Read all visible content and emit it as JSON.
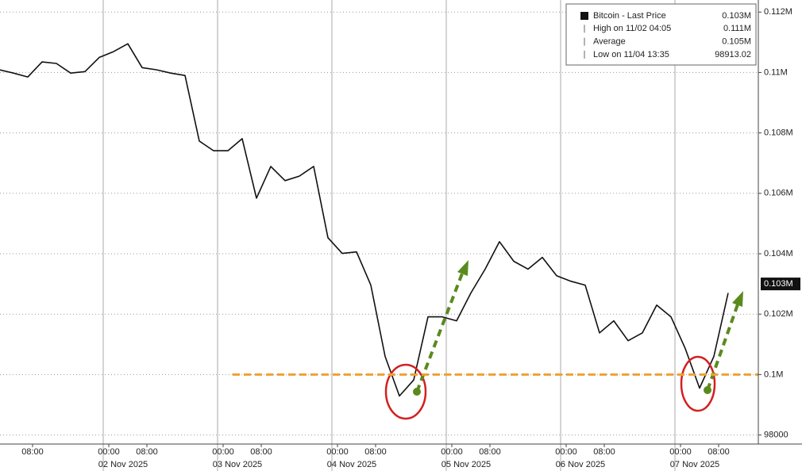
{
  "chart_data": {
    "type": "line",
    "x": [
      "2025-11-01T01:00",
      "2025-11-01T04:00",
      "2025-11-01T07:00",
      "2025-11-01T10:00",
      "2025-11-01T13:00",
      "2025-11-01T16:00",
      "2025-11-01T19:00",
      "2025-11-01T22:00",
      "2025-11-02T01:00",
      "2025-11-02T04:00",
      "2025-11-02T07:00",
      "2025-11-02T10:00",
      "2025-11-02T13:00",
      "2025-11-02T16:00",
      "2025-11-02T19:00",
      "2025-11-02T22:00",
      "2025-11-03T01:00",
      "2025-11-03T04:00",
      "2025-11-03T07:00",
      "2025-11-03T10:00",
      "2025-11-03T13:00",
      "2025-11-03T16:00",
      "2025-11-03T19:00",
      "2025-11-03T22:00",
      "2025-11-04T01:00",
      "2025-11-04T04:00",
      "2025-11-04T07:00",
      "2025-11-04T10:00",
      "2025-11-04T13:00",
      "2025-11-04T16:00",
      "2025-11-04T19:00",
      "2025-11-04T22:00",
      "2025-11-05T01:00",
      "2025-11-05T04:00",
      "2025-11-05T07:00",
      "2025-11-05T10:00",
      "2025-11-05T13:00",
      "2025-11-05T16:00",
      "2025-11-05T19:00",
      "2025-11-05T22:00",
      "2025-11-06T01:00",
      "2025-11-06T04:00",
      "2025-11-06T07:00",
      "2025-11-06T10:00",
      "2025-11-06T13:00",
      "2025-11-06T16:00",
      "2025-11-06T19:00",
      "2025-11-06T22:00",
      "2025-11-07T01:00",
      "2025-11-07T04:00",
      "2025-11-07T07:00",
      "2025-11-07T10:00"
    ],
    "series": [
      {
        "name": "Bitcoin - Last Price",
        "color": "#111111",
        "values": [
          110090,
          109980,
          109850,
          110350,
          110300,
          109980,
          110030,
          110500,
          110690,
          110950,
          110160,
          110090,
          109980,
          109900,
          107730,
          107410,
          107410,
          107810,
          105840,
          106890,
          106420,
          106570,
          106890,
          104530,
          104010,
          104060,
          102960,
          100600,
          99290,
          99820,
          101910,
          101910,
          101780,
          102700,
          103490,
          104400,
          103750,
          103490,
          103880,
          103270,
          103090,
          102960,
          101380,
          101780,
          101120,
          101380,
          102300,
          101910,
          100860,
          99550,
          100600,
          102700
        ]
      }
    ],
    "xlim": [
      "2025-11-01T01:10",
      "2025-11-07T16:20"
    ],
    "xticks": [
      {
        "value": "2025-11-01T08:00",
        "label": "08:00"
      },
      {
        "value": "2025-11-02T00:00",
        "label": "00:00"
      },
      {
        "value": "2025-11-02T08:00",
        "label": "08:00"
      },
      {
        "value": "2025-11-03T00:00",
        "label": "00:00"
      },
      {
        "value": "2025-11-03T08:00",
        "label": "08:00"
      },
      {
        "value": "2025-11-04T00:00",
        "label": "00:00"
      },
      {
        "value": "2025-11-04T08:00",
        "label": "08:00"
      },
      {
        "value": "2025-11-05T00:00",
        "label": "00:00"
      },
      {
        "value": "2025-11-05T08:00",
        "label": "08:00"
      },
      {
        "value": "2025-11-06T00:00",
        "label": "00:00"
      },
      {
        "value": "2025-11-06T08:00",
        "label": "08:00"
      },
      {
        "value": "2025-11-07T00:00",
        "label": "00:00"
      },
      {
        "value": "2025-11-07T08:00",
        "label": "08:00"
      }
    ],
    "date_ticks": [
      {
        "value": "2025-11-02T00:00",
        "label": "02 Nov 2025"
      },
      {
        "value": "2025-11-03T00:00",
        "label": "03 Nov 2025"
      },
      {
        "value": "2025-11-04T00:00",
        "label": "04 Nov 2025"
      },
      {
        "value": "2025-11-05T00:00",
        "label": "05 Nov 2025"
      },
      {
        "value": "2025-11-06T00:00",
        "label": "06 Nov 2025"
      },
      {
        "value": "2025-11-07T00:00",
        "label": "07 Nov 2025"
      }
    ],
    "ylim": [
      97700,
      112400
    ],
    "yticks": [
      98000,
      {
        "value": 100000,
        "label": "0.1M"
      },
      {
        "value": 102000,
        "label": "0.102M"
      },
      {
        "value": 104000,
        "label": "0.104M"
      },
      {
        "value": 106000,
        "label": "0.106M"
      },
      {
        "value": 108000,
        "label": "0.108M"
      },
      {
        "value": 110000,
        "label": "0.11M"
      },
      {
        "value": 112000,
        "label": "0.112M"
      }
    ],
    "grid": true,
    "legend_position": "top-right",
    "legend_stats": [
      {
        "label": "Bitcoin - Last Price",
        "value": 103000,
        "value_label": "0.103M"
      },
      {
        "label": "High on 11/02 04:05",
        "value": 111000,
        "value_label": "0.111M"
      },
      {
        "label": "Average",
        "value": 105000,
        "value_label": "0.105M"
      },
      {
        "label": "Low on 11/04 13:35",
        "value": 98913.02,
        "value_label": "98913.02"
      }
    ],
    "reference_line": {
      "value": 100000,
      "from": "2025-11-03T02:00",
      "color": "#f0a030"
    }
  }
}
